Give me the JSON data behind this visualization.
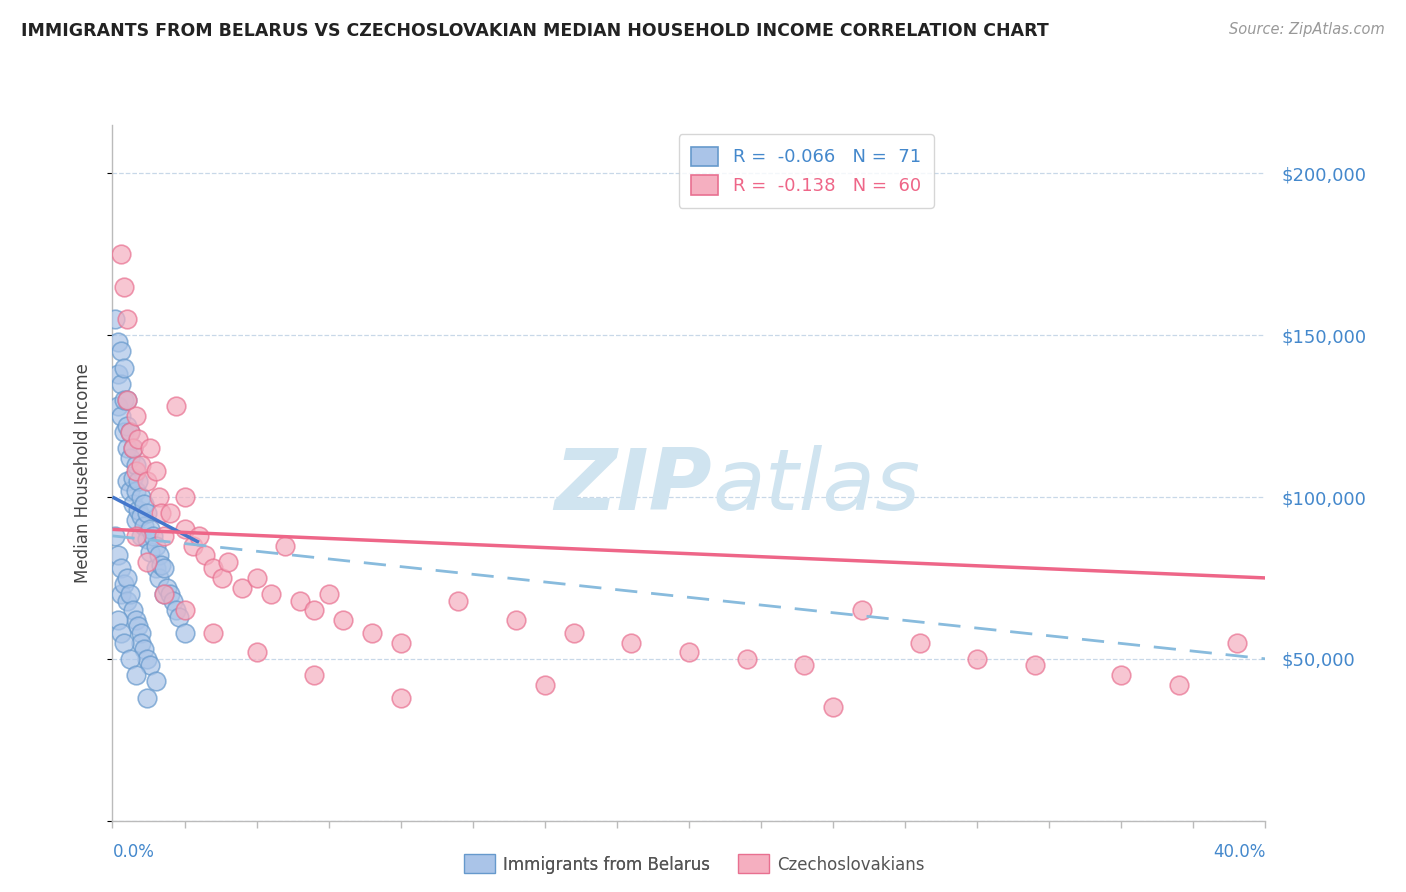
{
  "title": "IMMIGRANTS FROM BELARUS VS CZECHOSLOVAKIAN MEDIAN HOUSEHOLD INCOME CORRELATION CHART",
  "source": "Source: ZipAtlas.com",
  "ylabel": "Median Household Income",
  "ytick_values": [
    0,
    50000,
    100000,
    150000,
    200000
  ],
  "ytick_labels_right": [
    "",
    "$50,000",
    "$100,000",
    "$150,000",
    "$200,000"
  ],
  "ylim": [
    0,
    215000
  ],
  "xlim": [
    0.0,
    0.4
  ],
  "color_belarus": "#aac4e8",
  "color_czech": "#f5afc0",
  "color_border_belarus": "#6699cc",
  "color_border_czech": "#e87090",
  "color_trend_belarus": "#4477cc",
  "color_trend_czech": "#ee6688",
  "color_trend_dashed": "#88bbdd",
  "watermark_zip": "ZIP",
  "watermark_atlas": "atlas",
  "watermark_color": "#d0e4f0",
  "R_belarus": -0.066,
  "N_belarus": 71,
  "R_czech": -0.138,
  "N_czech": 60,
  "bel_trend_x0": 0.0,
  "bel_trend_x1": 0.03,
  "bel_trend_y0": 100000,
  "bel_trend_y1": 86000,
  "czech_trend_x0": 0.0,
  "czech_trend_x1": 0.4,
  "czech_trend_y0": 90000,
  "czech_trend_y1": 75000,
  "dashed_trend_x0": 0.0,
  "dashed_trend_x1": 0.4,
  "dashed_trend_y0": 88000,
  "dashed_trend_y1": 50000,
  "belarus_x": [
    0.001,
    0.002,
    0.002,
    0.002,
    0.003,
    0.003,
    0.003,
    0.004,
    0.004,
    0.004,
    0.005,
    0.005,
    0.005,
    0.005,
    0.006,
    0.006,
    0.006,
    0.007,
    0.007,
    0.007,
    0.008,
    0.008,
    0.008,
    0.009,
    0.009,
    0.01,
    0.01,
    0.01,
    0.011,
    0.011,
    0.012,
    0.012,
    0.013,
    0.013,
    0.014,
    0.015,
    0.015,
    0.016,
    0.016,
    0.017,
    0.018,
    0.018,
    0.019,
    0.02,
    0.021,
    0.022,
    0.023,
    0.025,
    0.001,
    0.002,
    0.003,
    0.003,
    0.004,
    0.005,
    0.005,
    0.006,
    0.007,
    0.008,
    0.009,
    0.01,
    0.01,
    0.011,
    0.012,
    0.013,
    0.015,
    0.002,
    0.003,
    0.004,
    0.006,
    0.008,
    0.012
  ],
  "belarus_y": [
    155000,
    148000,
    138000,
    128000,
    145000,
    135000,
    125000,
    140000,
    130000,
    120000,
    130000,
    122000,
    115000,
    105000,
    120000,
    112000,
    102000,
    115000,
    106000,
    98000,
    110000,
    102000,
    93000,
    105000,
    96000,
    100000,
    94000,
    88000,
    98000,
    91000,
    95000,
    87000,
    90000,
    83000,
    88000,
    85000,
    78000,
    82000,
    75000,
    79000,
    78000,
    70000,
    72000,
    70000,
    68000,
    65000,
    63000,
    58000,
    88000,
    82000,
    78000,
    70000,
    73000,
    75000,
    68000,
    70000,
    65000,
    62000,
    60000,
    58000,
    55000,
    53000,
    50000,
    48000,
    43000,
    62000,
    58000,
    55000,
    50000,
    45000,
    38000
  ],
  "czech_x": [
    0.003,
    0.004,
    0.005,
    0.005,
    0.006,
    0.007,
    0.008,
    0.008,
    0.009,
    0.01,
    0.012,
    0.013,
    0.015,
    0.016,
    0.017,
    0.018,
    0.02,
    0.022,
    0.025,
    0.025,
    0.028,
    0.03,
    0.032,
    0.035,
    0.038,
    0.04,
    0.045,
    0.05,
    0.055,
    0.06,
    0.065,
    0.07,
    0.075,
    0.08,
    0.09,
    0.1,
    0.12,
    0.14,
    0.16,
    0.18,
    0.2,
    0.22,
    0.24,
    0.26,
    0.28,
    0.3,
    0.32,
    0.35,
    0.37,
    0.39,
    0.008,
    0.012,
    0.018,
    0.025,
    0.035,
    0.05,
    0.07,
    0.1,
    0.15,
    0.25
  ],
  "czech_y": [
    175000,
    165000,
    155000,
    130000,
    120000,
    115000,
    125000,
    108000,
    118000,
    110000,
    105000,
    115000,
    108000,
    100000,
    95000,
    88000,
    95000,
    128000,
    100000,
    90000,
    85000,
    88000,
    82000,
    78000,
    75000,
    80000,
    72000,
    75000,
    70000,
    85000,
    68000,
    65000,
    70000,
    62000,
    58000,
    55000,
    68000,
    62000,
    58000,
    55000,
    52000,
    50000,
    48000,
    65000,
    55000,
    50000,
    48000,
    45000,
    42000,
    55000,
    88000,
    80000,
    70000,
    65000,
    58000,
    52000,
    45000,
    38000,
    42000,
    35000
  ]
}
